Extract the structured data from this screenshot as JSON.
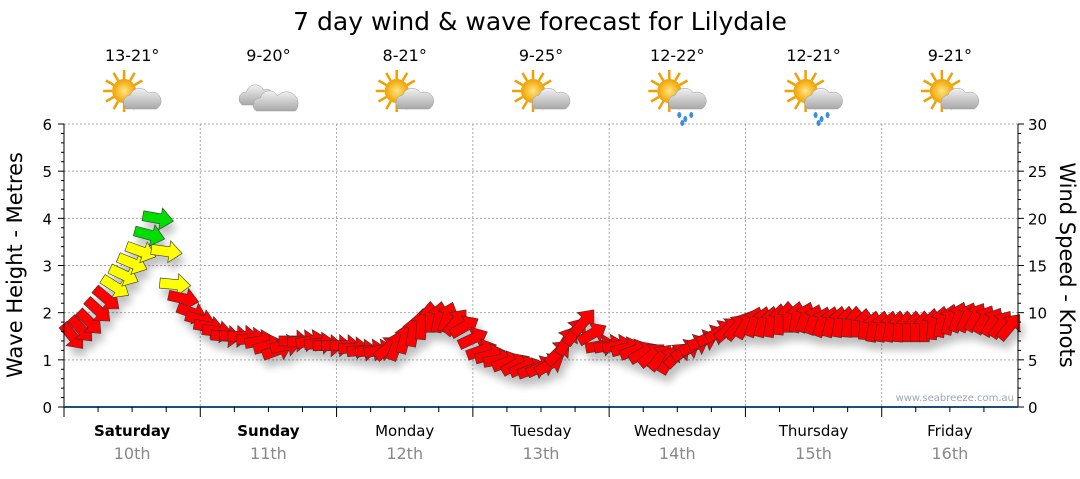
{
  "chart_data": {
    "type": "scatter",
    "title": "7 day wind & wave forecast for Lilydale",
    "ylabel_left": "Wave Height - Metres",
    "ylabel_right": "Wind Speed - Knots",
    "ylim_left": [
      0,
      6
    ],
    "ylim_right": [
      0,
      30
    ],
    "left_ticks": [
      "0",
      "1",
      "2",
      "3",
      "4",
      "5",
      "6"
    ],
    "right_ticks": [
      "0",
      "5",
      "10",
      "15",
      "20",
      "25",
      "30"
    ],
    "grid": true,
    "watermark": "www.seabreeze.com.au",
    "days": [
      {
        "name": "Saturday",
        "date": "10th",
        "temp": "13-21°",
        "icon": "partly-cloudy-icon",
        "bold": true
      },
      {
        "name": "Sunday",
        "date": "11th",
        "temp": "9-20°",
        "icon": "cloudy-icon",
        "bold": true
      },
      {
        "name": "Monday",
        "date": "12th",
        "temp": "8-21°",
        "icon": "partly-cloudy-icon",
        "bold": false
      },
      {
        "name": "Tuesday",
        "date": "13th",
        "temp": "9-25°",
        "icon": "partly-cloudy-icon",
        "bold": false
      },
      {
        "name": "Wednesday",
        "date": "14th",
        "temp": "12-22°",
        "icon": "shower-icon",
        "bold": false
      },
      {
        "name": "Thursday",
        "date": "15th",
        "temp": "12-21°",
        "icon": "shower-icon",
        "bold": false
      },
      {
        "name": "Friday",
        "date": "16th",
        "temp": "9-21°",
        "icon": "partly-cloudy-icon",
        "bold": false
      }
    ],
    "wind_interval_hours": 3,
    "wind_speed_knots": [
      7.5,
      9,
      11.5,
      14,
      16.5,
      20,
      13,
      10,
      8.5,
      7.5,
      7.5,
      7,
      6,
      7,
      7,
      6.5,
      6.5,
      6,
      6,
      6.5,
      8,
      9.5,
      9.5,
      8.5,
      6,
      5,
      4.5,
      4,
      4.5,
      7,
      9,
      6.5,
      6.5,
      6,
      5.5,
      5,
      6,
      7,
      8,
      8.5,
      9,
      9,
      9.5,
      9.5,
      9,
      9,
      9,
      8.5,
      8.5,
      8.5,
      8.5,
      9,
      9.5,
      9.5,
      9,
      8.5
    ],
    "wind_direction_deg": [
      140,
      135,
      130,
      115,
      110,
      100,
      95,
      110,
      100,
      95,
      90,
      80,
      70,
      90,
      80,
      90,
      90,
      85,
      80,
      20,
      10,
      0,
      20,
      60,
      70,
      80,
      60,
      70,
      60,
      30,
      40,
      80,
      80,
      70,
      50,
      30,
      60,
      70,
      60,
      40,
      20,
      10,
      0,
      20,
      20,
      10,
      0,
      10,
      10,
      0,
      0,
      10,
      20,
      30,
      30,
      40
    ],
    "color_thresholds": {
      "red": "#ff0000",
      "yellow": "#ffff00",
      "green": "#00dd00"
    }
  }
}
